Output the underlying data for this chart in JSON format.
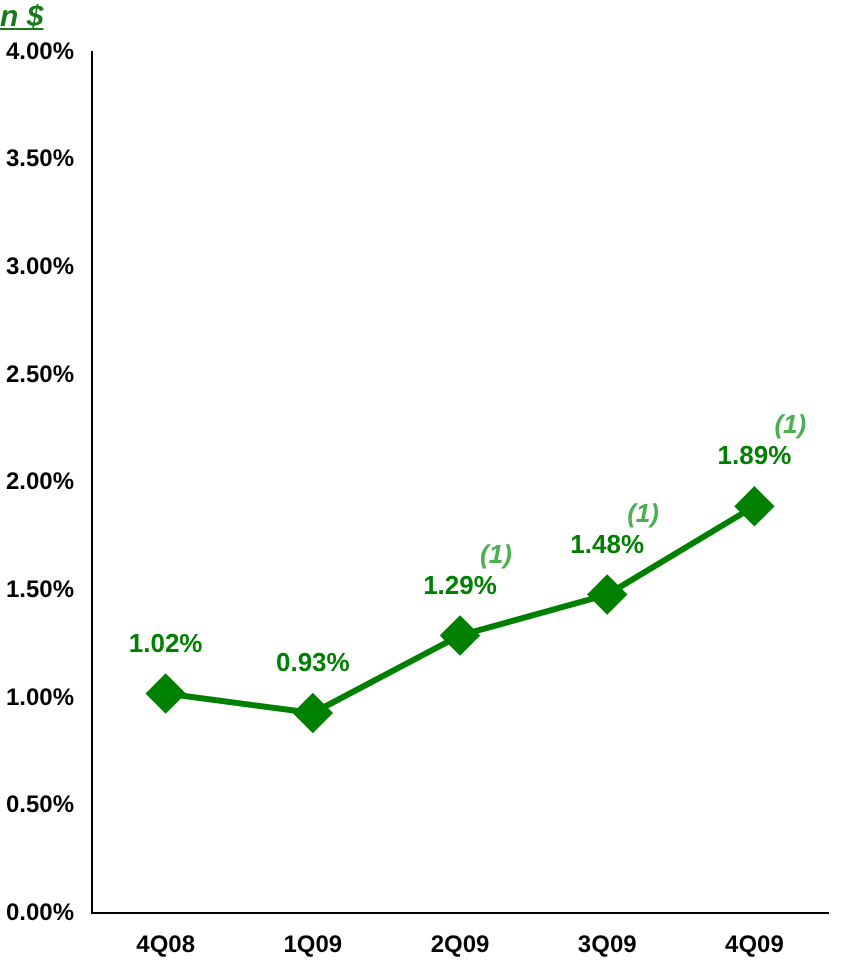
{
  "chart_data": {
    "type": "line",
    "title": "n $",
    "categories": [
      "4Q08",
      "1Q09",
      "2Q09",
      "3Q09",
      "4Q09"
    ],
    "series": [
      {
        "color": "#008000",
        "values": [
          1.02,
          0.93,
          1.29,
          1.48,
          1.89
        ]
      }
    ],
    "ylim": [
      0,
      4
    ],
    "yticks": [
      {
        "value": 0,
        "label": "0.00%"
      },
      {
        "value": 0.5,
        "label": "0.50%"
      },
      {
        "value": 1,
        "label": "1.00%"
      },
      {
        "value": 1.5,
        "label": "1.50%"
      },
      {
        "value": 2,
        "label": "2.00%"
      },
      {
        "value": 2.5,
        "label": "2.50%"
      },
      {
        "value": 3,
        "label": "3.00%"
      },
      {
        "value": 3.5,
        "label": "3.50%"
      },
      {
        "value": 4,
        "label": "4.00%"
      }
    ],
    "value_labels": [
      "1.02%",
      "0.93%",
      "1.29%",
      "1.48%",
      "1.89%"
    ],
    "annotations": [
      "(1)",
      "(1)",
      "(1)"
    ],
    "grid": false,
    "marker": "diamond",
    "line_style": "solid"
  }
}
